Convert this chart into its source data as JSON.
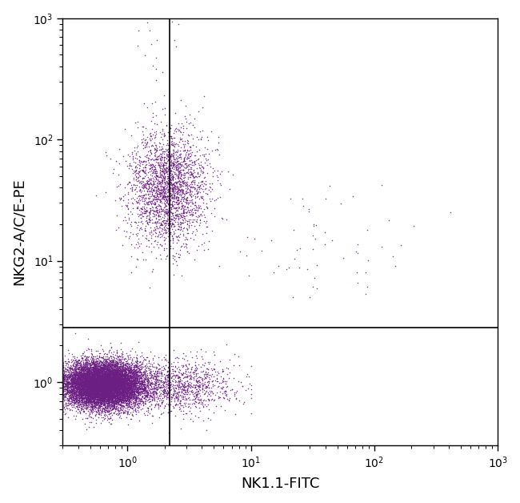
{
  "xlabel": "NK1.1-FITC",
  "ylabel": "NKG2-A/C/E-PE",
  "xlim": [
    0.3,
    1000
  ],
  "ylim": [
    0.3,
    1000
  ],
  "point_color": "#6B1F82",
  "point_alpha": 0.85,
  "point_size": 1.2,
  "vline_x": 2.2,
  "hline_y": 2.8,
  "background_color": "#ffffff",
  "line_color": "#000000",
  "seed": 42
}
